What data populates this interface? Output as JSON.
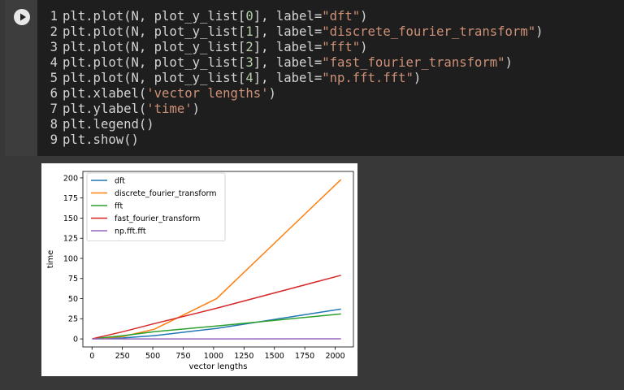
{
  "code_cell": {
    "run_icon": "play-icon",
    "lines": [
      {
        "n": "1",
        "parts": [
          {
            "t": "plt.plot(N, plot_y_list["
          },
          {
            "t": "0",
            "c": "num"
          },
          {
            "t": "], label="
          },
          {
            "t": "\"dft\"",
            "c": "str"
          },
          {
            "t": ")"
          }
        ]
      },
      {
        "n": "2",
        "parts": [
          {
            "t": "plt.plot(N, plot_y_list["
          },
          {
            "t": "1",
            "c": "num"
          },
          {
            "t": "], label="
          },
          {
            "t": "\"discrete_fourier_transform\"",
            "c": "str"
          },
          {
            "t": ")"
          }
        ]
      },
      {
        "n": "3",
        "parts": [
          {
            "t": "plt.plot(N, plot_y_list["
          },
          {
            "t": "2",
            "c": "num"
          },
          {
            "t": "], label="
          },
          {
            "t": "\"fft\"",
            "c": "str"
          },
          {
            "t": ")"
          }
        ]
      },
      {
        "n": "4",
        "parts": [
          {
            "t": "plt.plot(N, plot_y_list["
          },
          {
            "t": "3",
            "c": "num"
          },
          {
            "t": "], label="
          },
          {
            "t": "\"fast_fourier_transform\"",
            "c": "str"
          },
          {
            "t": ")"
          }
        ]
      },
      {
        "n": "5",
        "parts": [
          {
            "t": "plt.plot(N, plot_y_list["
          },
          {
            "t": "4",
            "c": "num"
          },
          {
            "t": "], label="
          },
          {
            "t": "\"np.fft.fft\"",
            "c": "str"
          },
          {
            "t": ")"
          }
        ]
      },
      {
        "n": "6",
        "parts": [
          {
            "t": "plt.xlabel("
          },
          {
            "t": "'vector lengths'",
            "c": "str"
          },
          {
            "t": ")"
          }
        ]
      },
      {
        "n": "7",
        "parts": [
          {
            "t": "plt.ylabel("
          },
          {
            "t": "'time'",
            "c": "str"
          },
          {
            "t": ")"
          }
        ]
      },
      {
        "n": "8",
        "parts": [
          {
            "t": "plt.legend()"
          }
        ]
      },
      {
        "n": "9",
        "parts": [
          {
            "t": "plt.show()"
          }
        ]
      }
    ]
  },
  "chart_data": {
    "type": "line",
    "xlabel": "vector lengths",
    "ylabel": "time",
    "xlim": [
      -75,
      2150
    ],
    "ylim": [
      -10,
      208
    ],
    "xticks": [
      0,
      250,
      500,
      750,
      1000,
      1250,
      1500,
      1750,
      2000
    ],
    "yticks": [
      0,
      25,
      50,
      75,
      100,
      125,
      150,
      175,
      200
    ],
    "legend_position": "top-left",
    "grid": false,
    "series": [
      {
        "name": "dft",
        "color": "#1f77b4",
        "x": [
          2,
          256,
          512,
          1024,
          2048
        ],
        "y": [
          0.1,
          1.2,
          4,
          13,
          37
        ]
      },
      {
        "name": "discrete_fourier_transform",
        "color": "#ff7f0e",
        "x": [
          2,
          256,
          512,
          1024,
          2048
        ],
        "y": [
          0.1,
          3,
          12,
          50,
          198
        ]
      },
      {
        "name": "fft",
        "color": "#2ca02c",
        "x": [
          2,
          256,
          512,
          1024,
          2048
        ],
        "y": [
          0.1,
          4,
          9,
          16,
          31
        ]
      },
      {
        "name": "fast_fourier_transform",
        "color": "#d62728",
        "x": [
          2,
          256,
          512,
          1024,
          2048
        ],
        "y": [
          0.1,
          9,
          19,
          38,
          79
        ]
      },
      {
        "name": "np.fft.fft",
        "color": "#9467bd",
        "x": [
          2,
          256,
          512,
          1024,
          2048
        ],
        "y": [
          0.0,
          0.0,
          0.0,
          0.0,
          0.1
        ]
      }
    ]
  }
}
